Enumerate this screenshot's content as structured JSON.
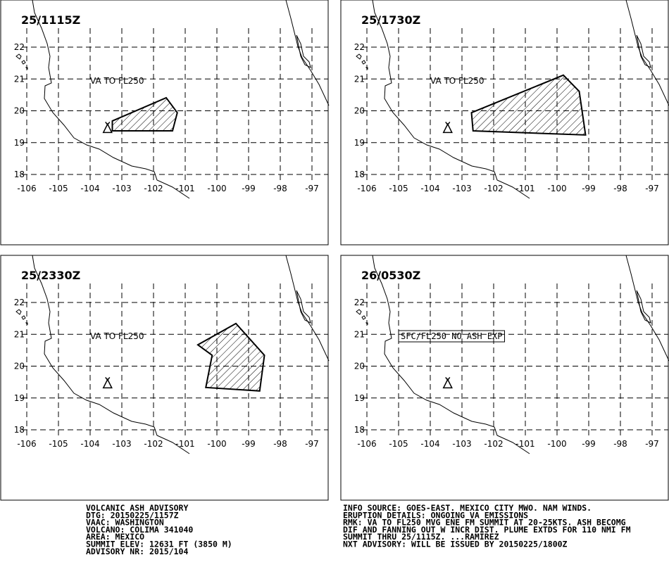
{
  "map": {
    "lon_ticks": [
      -106,
      -105,
      -104,
      -103,
      -102,
      -101,
      -100,
      -99,
      -98,
      -97
    ],
    "lat_ticks": [
      18,
      19,
      20,
      21,
      22
    ],
    "volcano": {
      "lon": -103.45,
      "lat": 19.45
    },
    "panels": [
      {
        "time": "25/1115Z",
        "label": "VA TO FL250",
        "boxed": false,
        "polygon": [
          [
            -103.3,
            19.68
          ],
          [
            -101.6,
            20.41
          ],
          [
            -101.25,
            19.94
          ],
          [
            -101.4,
            19.37
          ],
          [
            -103.3,
            19.37
          ]
        ]
      },
      {
        "time": "25/1730Z",
        "label": "VA TO FL250",
        "boxed": false,
        "polygon": [
          [
            -102.7,
            19.94
          ],
          [
            -99.8,
            21.12
          ],
          [
            -99.3,
            20.61
          ],
          [
            -99.1,
            19.24
          ],
          [
            -102.65,
            19.37
          ]
        ]
      },
      {
        "time": "25/2330Z",
        "label": "VA TO FL250",
        "boxed": false,
        "polygon": [
          [
            -100.6,
            20.67
          ],
          [
            -99.4,
            21.34
          ],
          [
            -98.5,
            20.34
          ],
          [
            -98.65,
            19.22
          ],
          [
            -100.35,
            19.33
          ],
          [
            -100.15,
            20.34
          ]
        ]
      },
      {
        "time": "26/0530Z",
        "label": "SFC/FL250 NO ASH EXP",
        "boxed": true,
        "polygon": []
      }
    ]
  },
  "advisory": {
    "left": [
      "VOLCANIC ASH ADVISORY",
      "DTG: 20150225/1157Z",
      "VAAC: WASHINGTON",
      "VOLCANO: COLIMA 341040",
      "AREA: MEXICO",
      "SUMMIT ELEV: 12631 FT (3850 M)",
      "ADVISORY NR: 2015/104"
    ],
    "right": [
      "INFO SOURCE: GOES-EAST. MEXICO CITY MWO. NAM WINDS.",
      "ERUPTION DETAILS: ONGOING VA EMISSIONS",
      "RMK: VA TO FL250 MVG ENE FM SUMMIT AT 20-25KTS. ASH BECOMG",
      "DIF AND FANNING OUT W INCR DIST. PLUME EXTDS FOR 110 NMI FM",
      "SUMMIT THRU 25/1115Z. ...RAMIREZ",
      "NXT ADVISORY: WILL BE ISSUED BY 20150225/1800Z"
    ]
  }
}
